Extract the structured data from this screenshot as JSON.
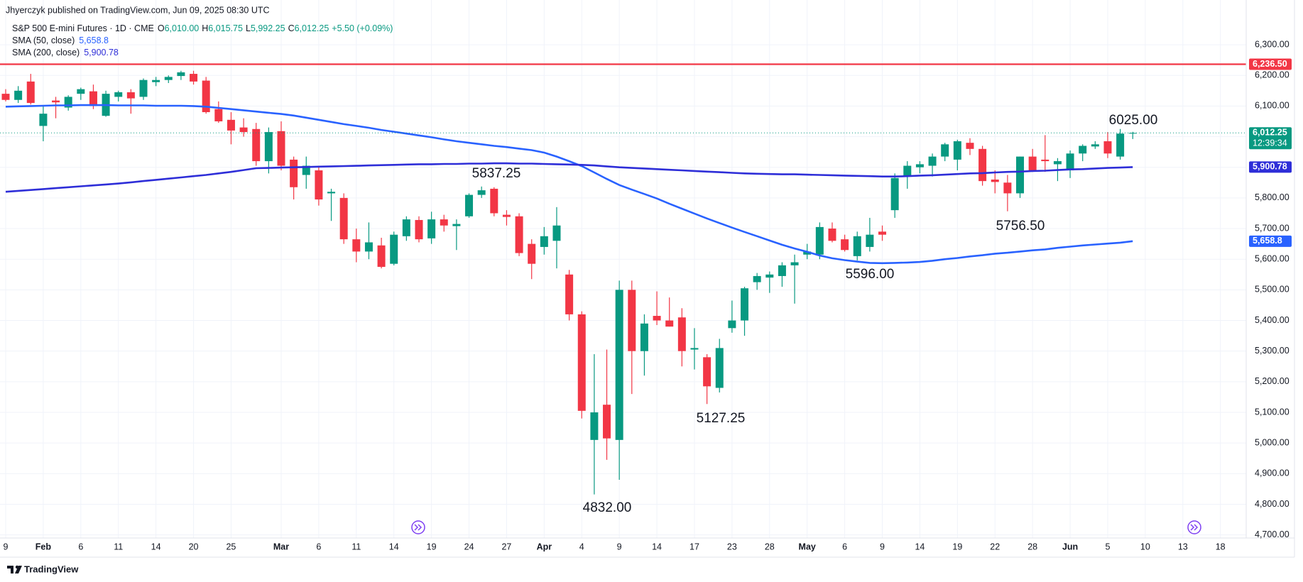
{
  "published": "Jhyerczyk published on TradingView.com, Jun 09, 2025 08:30 UTC",
  "branding": "TradingView",
  "chart_data": {
    "type": "candlestick",
    "symbol": "S&P 500 E-mini Futures · 1D · CME",
    "ohlc": [
      {
        "key": "O",
        "value": "6,010.00"
      },
      {
        "key": "H",
        "value": "6,015.75"
      },
      {
        "key": "L",
        "value": "5,992.25"
      },
      {
        "key": "C",
        "value": "6,012.25"
      }
    ],
    "change": "+5.50 (+0.09%)",
    "up_color": "#089981",
    "down_color": "#f23645",
    "categories": [
      "9",
      null,
      null,
      "Feb",
      null,
      null,
      "6",
      null,
      null,
      "11",
      null,
      null,
      "14",
      null,
      null,
      "20",
      null,
      null,
      "25",
      null,
      null,
      null,
      "Mar",
      null,
      null,
      "6",
      null,
      null,
      "11",
      null,
      null,
      "14",
      null,
      null,
      "19",
      null,
      null,
      "24",
      null,
      null,
      "27",
      null,
      null,
      "Apr",
      null,
      null,
      "4",
      null,
      null,
      "9",
      null,
      null,
      "14",
      null,
      null,
      "17",
      null,
      null,
      "23",
      null,
      null,
      "28",
      null,
      null,
      "May",
      null,
      null,
      "6",
      null,
      null,
      "9",
      null,
      null,
      "14",
      null,
      null,
      "19",
      null,
      null,
      "22",
      null,
      null,
      "28",
      null,
      null,
      "Jun",
      null,
      null,
      "5",
      null,
      null,
      "10",
      null,
      null,
      "13",
      null,
      null,
      "18"
    ],
    "open": [
      6140,
      6120,
      6180,
      6035,
      6118,
      6095,
      6140,
      6148,
      6068,
      6130,
      6145,
      6130,
      6178,
      6185,
      6198,
      6205,
      6183,
      6090,
      6055,
      6030,
      6025,
      5920,
      6018,
      5925,
      5875,
      5890,
      5815,
      5800,
      5665,
      5625,
      5645,
      5585,
      5675,
      5728,
      5668,
      5730,
      5708,
      5740,
      5810,
      5830,
      5745,
      5740,
      5650,
      5640,
      5660,
      5550,
      5420,
      5010,
      5125,
      5010,
      5500,
      5300,
      5415,
      5400,
      5410,
      5305,
      5280,
      5180,
      5375,
      5400,
      5525,
      5540,
      5545,
      5580,
      5615,
      5615,
      5700,
      5665,
      5610,
      5640,
      5690,
      5760,
      5870,
      5900,
      5905,
      5935,
      5925,
      5980,
      5960,
      5860,
      5850,
      5815,
      5935,
      5925,
      5910,
      5890,
      5945,
      5968,
      5985,
      5935,
      6010,
      null,
      null,
      null,
      null,
      null,
      null,
      null
    ],
    "high": [
      6155,
      6165,
      6205,
      6100,
      6130,
      6135,
      6160,
      6170,
      6150,
      6150,
      6155,
      6190,
      6195,
      6200,
      6215,
      6215,
      6195,
      6115,
      6080,
      6060,
      6045,
      6030,
      6050,
      5935,
      5935,
      5905,
      5830,
      5815,
      5700,
      5720,
      5670,
      5690,
      5740,
      5740,
      5755,
      5745,
      5730,
      5815,
      5837.25,
      5835,
      5760,
      5750,
      5665,
      5705,
      5770,
      5565,
      5430,
      5290,
      5305,
      5530,
      5530,
      5420,
      5495,
      5475,
      5440,
      5375,
      5290,
      5340,
      5465,
      5510,
      5555,
      5560,
      5590,
      5615,
      5650,
      5720,
      5720,
      5680,
      5690,
      5735,
      5710,
      5880,
      5920,
      5920,
      5945,
      5980,
      5990,
      5995,
      5970,
      5890,
      5875,
      5935,
      5960,
      6005,
      5930,
      5955,
      5975,
      5985,
      6015,
      6025,
      6015.75,
      null,
      null,
      null,
      null,
      null,
      null,
      null
    ],
    "low": [
      6115,
      6110,
      6105,
      5985,
      6060,
      6085,
      6120,
      6090,
      6065,
      6115,
      6075,
      6120,
      6165,
      6175,
      6185,
      6170,
      6075,
      6045,
      5975,
      6000,
      5905,
      5880,
      5890,
      5795,
      5830,
      5775,
      5725,
      5650,
      5590,
      5600,
      5570,
      5580,
      5660,
      5655,
      5650,
      5690,
      5630,
      5735,
      5800,
      5740,
      5710,
      5610,
      5535,
      5615,
      5570,
      5400,
      5080,
      4832,
      4945,
      4880,
      5160,
      5220,
      5385,
      5380,
      5250,
      5240,
      5127.25,
      5165,
      5360,
      5350,
      5500,
      5490,
      5510,
      5455,
      5600,
      5600,
      5655,
      5625,
      5596,
      5625,
      5660,
      5735,
      5830,
      5880,
      5870,
      5920,
      5890,
      5940,
      5840,
      5815,
      5756.5,
      5800,
      5885,
      5885,
      5855,
      5865,
      5920,
      5960,
      5930,
      5925,
      5992.25,
      null,
      null,
      null,
      null,
      null,
      null,
      null
    ],
    "close": [
      6120,
      6150,
      6110,
      6075,
      6112,
      6130,
      6155,
      6100,
      6140,
      6145,
      6125,
      6185,
      6185,
      6195,
      6210,
      6180,
      6080,
      6050,
      6020,
      6015,
      5920,
      6015,
      5905,
      5835,
      5905,
      5795,
      5820,
      5665,
      5625,
      5655,
      5575,
      5680,
      5730,
      5665,
      5730,
      5710,
      5715,
      5810,
      5825,
      5750,
      5738,
      5620,
      5585,
      5675,
      5710,
      5420,
      5105,
      5100,
      5015,
      5500,
      5300,
      5390,
      5400,
      5380,
      5300,
      5310,
      5185,
      5310,
      5400,
      5505,
      5545,
      5550,
      5580,
      5590,
      5625,
      5705,
      5660,
      5630,
      5675,
      5680,
      5680,
      5865,
      5905,
      5910,
      5935,
      5975,
      5985,
      5960,
      5855,
      5852,
      5815,
      5935,
      5890,
      5920,
      5920,
      5945,
      5970,
      5975,
      5945,
      6010,
      6012.25,
      null,
      null,
      null,
      null,
      null,
      null,
      null
    ],
    "series": [
      {
        "name": "SMA (50, close)",
        "color": "#2962ff",
        "last_label": "5,658.8",
        "values": [
          6098,
          6099,
          6100,
          6101,
          6102,
          6102,
          6103,
          6103,
          6103,
          6102,
          6102,
          6102,
          6101,
          6101,
          6101,
          6100,
          6098,
          6094,
          6090,
          6086,
          6082,
          6078,
          6074,
          6069,
          6062,
          6055,
          6048,
          6041,
          6035,
          6029,
          6022,
          6016,
          6010,
          6004,
          5998,
          5991,
          5985,
          5980,
          5975,
          5970,
          5966,
          5961,
          5956,
          5948,
          5935,
          5920,
          5904,
          5883,
          5862,
          5842,
          5827,
          5813,
          5798,
          5781,
          5765,
          5749,
          5733,
          5718,
          5703,
          5689,
          5675,
          5661,
          5647,
          5635,
          5624,
          5612,
          5603,
          5597,
          5592,
          5588,
          5587,
          5588,
          5589,
          5591,
          5595,
          5600,
          5604,
          5609,
          5613,
          5618,
          5621,
          5625,
          5629,
          5632,
          5637,
          5641,
          5645,
          5648,
          5651,
          5654,
          5658.8,
          null,
          null,
          null,
          null,
          null,
          null,
          null
        ]
      },
      {
        "name": "SMA (200, close)",
        "color": "#2e2ed8",
        "last_label": "5,900.78",
        "values": [
          5820,
          5823,
          5826,
          5829,
          5832,
          5835,
          5838,
          5841,
          5844,
          5847,
          5851,
          5855,
          5859,
          5863,
          5867,
          5871,
          5875,
          5880,
          5885,
          5891,
          5897,
          5898,
          5899,
          5900,
          5901,
          5902,
          5903,
          5904,
          5905,
          5906,
          5907,
          5908,
          5909,
          5910,
          5910,
          5911,
          5911,
          5912,
          5912,
          5913,
          5913,
          5912,
          5912,
          5911,
          5910,
          5909,
          5908,
          5906,
          5903,
          5900,
          5898,
          5896,
          5894,
          5892,
          5890,
          5888,
          5886,
          5884,
          5882,
          5880,
          5879,
          5878,
          5877,
          5877,
          5876,
          5875,
          5874,
          5873,
          5872,
          5871,
          5870,
          5870,
          5871,
          5873,
          5874,
          5876,
          5878,
          5880,
          5881,
          5883,
          5885,
          5886,
          5888,
          5889,
          5891,
          5893,
          5894,
          5896,
          5898,
          5899,
          5900.78,
          null,
          null,
          null,
          null,
          null,
          null,
          null
        ]
      }
    ],
    "levels": [
      {
        "value": 6236.5,
        "label": "6,236.50",
        "color": "#f23645"
      }
    ],
    "last_price": {
      "value": 6012.25,
      "label": "6,012.25",
      "countdown": "12:39:34"
    },
    "annotations": [
      "5837.25",
      "4832.00",
      "5127.25",
      "5596.00",
      "5756.50",
      "6025.00"
    ],
    "ylim": [
      4689,
      6438
    ],
    "yticks": [
      {
        "value": 4700,
        "label": "4,700.00"
      },
      {
        "value": 4800,
        "label": "4,800.00"
      },
      {
        "value": 4900,
        "label": "4,900.00"
      },
      {
        "value": 5000,
        "label": "5,000.00"
      },
      {
        "value": 5100,
        "label": "5,100.00"
      },
      {
        "value": 5200,
        "label": "5,200.00"
      },
      {
        "value": 5300,
        "label": "5,300.00"
      },
      {
        "value": 5400,
        "label": "5,400.00"
      },
      {
        "value": 5500,
        "label": "5,500.00"
      },
      {
        "value": 5600,
        "label": "5,600.00"
      },
      {
        "value": 5700,
        "label": "5,700.00"
      },
      {
        "value": 5800,
        "label": "5,800.00"
      },
      {
        "value": 5900,
        "label": "5,900.00"
      },
      {
        "value": 6000,
        "label": "6,000.00"
      },
      {
        "value": 6100,
        "label": "6,100.00"
      },
      {
        "value": 6200,
        "label": "6,200.00"
      },
      {
        "value": 6300,
        "label": "6,300.00"
      }
    ],
    "grid": true
  }
}
